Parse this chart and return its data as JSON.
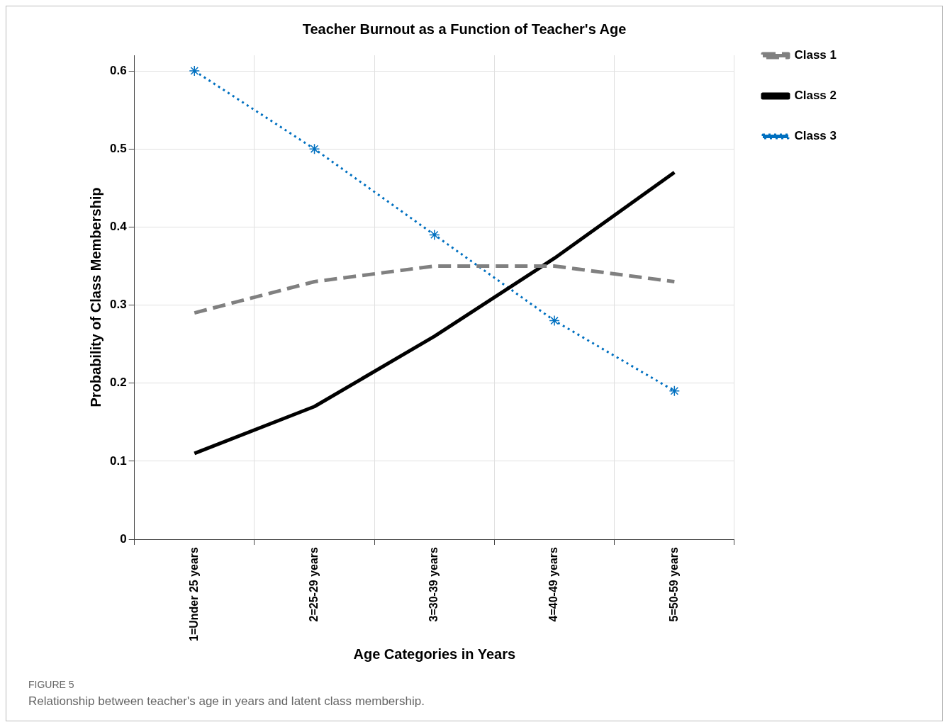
{
  "chart_data": {
    "type": "line",
    "title": "Teacher Burnout as a Function of Teacher's Age",
    "xlabel": "Age Categories in Years",
    "ylabel": "Probability of Class Membership",
    "categories": [
      "1=Under 25 years",
      "2=25-29 years",
      "3=30-39 years",
      "4=40-49 years",
      "5=50-59 years"
    ],
    "series": [
      {
        "name": "Class 1",
        "color": "#808080",
        "line_style": "dashed",
        "marker": "none",
        "values": [
          0.29,
          0.33,
          0.35,
          0.35,
          0.33
        ]
      },
      {
        "name": "Class 2",
        "color": "#000000",
        "line_style": "solid",
        "marker": "none",
        "values": [
          0.11,
          0.17,
          0.26,
          0.36,
          0.47
        ]
      },
      {
        "name": "Class 3",
        "color": "#0070c0",
        "line_style": "dotted",
        "marker": "cross",
        "values": [
          0.6,
          0.5,
          0.39,
          0.28,
          0.19
        ]
      }
    ],
    "ylim": [
      0,
      0.62
    ],
    "yticks": [
      0,
      0.1,
      0.2,
      0.3,
      0.4,
      0.5,
      0.6
    ],
    "grid": true,
    "legend": "right",
    "annotations": [
      "FIGURE 5",
      "Relationship between teacher's age in years and latent class membership."
    ]
  }
}
